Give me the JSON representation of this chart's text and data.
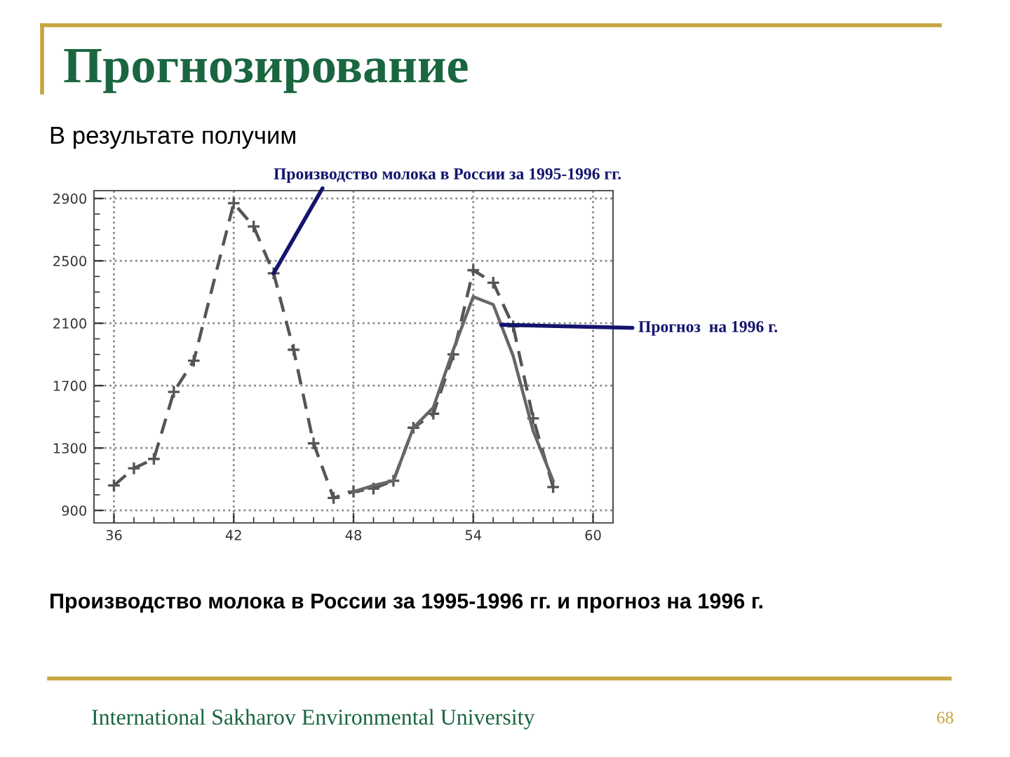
{
  "chart_data": {
    "type": "line",
    "title": "Прогнозирование",
    "subtitle": "В результате получим",
    "xlim": [
      35,
      61
    ],
    "xticks": [
      36,
      42,
      48,
      54,
      60
    ],
    "ylim": [
      820,
      2950
    ],
    "yticks": [
      900,
      1300,
      1700,
      2100,
      2500,
      2900
    ],
    "grid": true,
    "series": [
      {
        "color": "#555555",
        "line_style": "dashed",
        "marker": "cross",
        "x": [
          36,
          37,
          38,
          39,
          40,
          42,
          43,
          44,
          45,
          46,
          47,
          48,
          49,
          50,
          51,
          52,
          53,
          54,
          55,
          56,
          57,
          58
        ],
        "values": [
          1060,
          1170,
          1230,
          1660,
          1860,
          2870,
          2720,
          2420,
          1930,
          1330,
          980,
          1020,
          1040,
          1090,
          1430,
          1520,
          1900,
          2440,
          2360,
          2080,
          1490,
          1050
        ]
      },
      {
        "color": "#666666",
        "line_style": "solid",
        "x": [
          48,
          49,
          50,
          51,
          52,
          53,
          54,
          55,
          56,
          57,
          58
        ],
        "values": [
          1020,
          1060,
          1090,
          1430,
          1560,
          1930,
          2270,
          2220,
          1890,
          1410,
          1090
        ]
      }
    ],
    "annotations": [
      {
        "text": "Производство молока в России за 1995-1996 гг.",
        "x": 44,
        "y": 2420
      },
      {
        "text": "Прогноз  на 1996 г.",
        "x": 55.4,
        "y": 2090
      },
      "Производство молока в России за 1995-1996 гг. и прогноз на 1996 г.",
      "International Sakharov Environmental University",
      "68"
    ]
  }
}
